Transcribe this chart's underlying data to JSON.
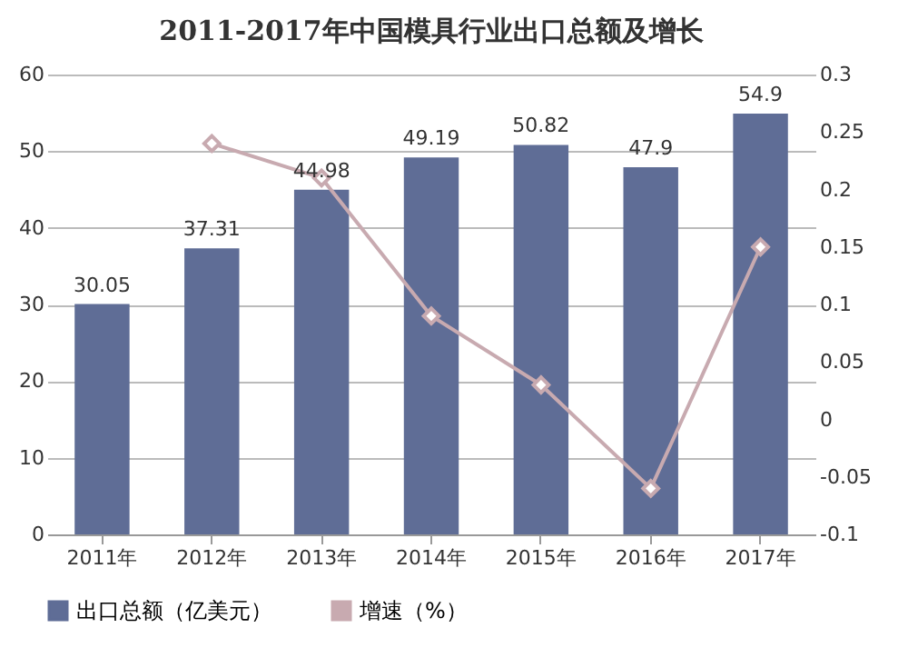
{
  "chart_data": {
    "type": "bar",
    "title": "2011-2017年中国模具行业出口总额及增长",
    "categories": [
      "2011年",
      "2012年",
      "2013年",
      "2014年",
      "2015年",
      "2016年",
      "2017年"
    ],
    "series": [
      {
        "name": "出口总额（亿美元）",
        "color": "#5f6d96",
        "values": [
          30.05,
          37.31,
          44.98,
          49.19,
          50.82,
          47.9,
          54.9
        ],
        "value_labels": [
          "30.05",
          "37.31",
          "44.98",
          "49.19",
          "50.82",
          "47.9",
          "54.9"
        ]
      },
      {
        "name": "增速（%）",
        "type": "line",
        "axis": "y2",
        "color": "#c8aab0",
        "marker": "diamond",
        "values": [
          null,
          0.24,
          0.21,
          0.09,
          0.03,
          -0.06,
          0.15
        ]
      }
    ],
    "ylim": [
      0,
      60
    ],
    "yticks": [
      0,
      10,
      20,
      30,
      40,
      50,
      60
    ],
    "y2lim": [
      -0.1,
      0.3
    ],
    "y2ticks": [
      -0.1,
      -0.05,
      0,
      0.05,
      0.1,
      0.15,
      0.2,
      0.25,
      0.3
    ],
    "grid": "y",
    "legend": "bottom"
  }
}
